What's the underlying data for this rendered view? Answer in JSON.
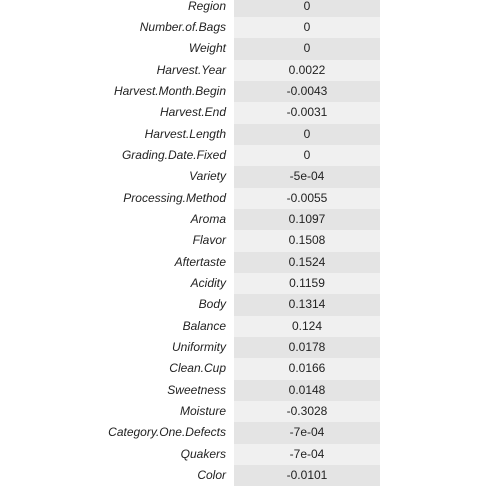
{
  "rows": [
    {
      "label": "Region",
      "value": "0"
    },
    {
      "label": "Number.of.Bags",
      "value": "0"
    },
    {
      "label": "Weight",
      "value": "0"
    },
    {
      "label": "Harvest.Year",
      "value": "0.0022"
    },
    {
      "label": "Harvest.Month.Begin",
      "value": "-0.0043"
    },
    {
      "label": "Harvest.End",
      "value": "-0.0031"
    },
    {
      "label": "Harvest.Length",
      "value": "0"
    },
    {
      "label": "Grading.Date.Fixed",
      "value": "0"
    },
    {
      "label": "Variety",
      "value": "-5e-04"
    },
    {
      "label": "Processing.Method",
      "value": "-0.0055"
    },
    {
      "label": "Aroma",
      "value": "0.1097"
    },
    {
      "label": "Flavor",
      "value": "0.1508"
    },
    {
      "label": "Aftertaste",
      "value": "0.1524"
    },
    {
      "label": "Acidity",
      "value": "0.1159"
    },
    {
      "label": "Body",
      "value": "0.1314"
    },
    {
      "label": "Balance",
      "value": "0.124"
    },
    {
      "label": "Uniformity",
      "value": "0.0178"
    },
    {
      "label": "Clean.Cup",
      "value": "0.0166"
    },
    {
      "label": "Sweetness",
      "value": "0.0148"
    },
    {
      "label": "Moisture",
      "value": "-0.3028"
    },
    {
      "label": "Category.One.Defects",
      "value": "-7e-04"
    },
    {
      "label": "Quakers",
      "value": "-7e-04"
    },
    {
      "label": "Color",
      "value": "-0.0101"
    }
  ]
}
